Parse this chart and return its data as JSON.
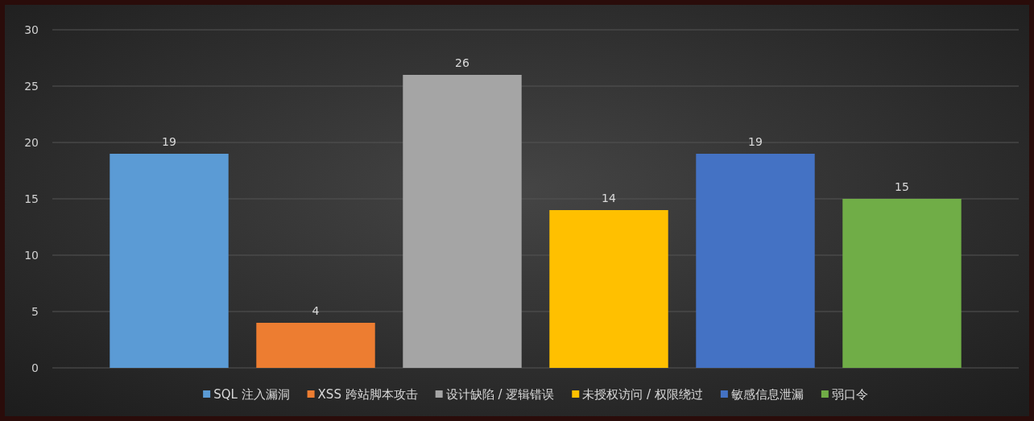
{
  "chart_data": {
    "type": "bar",
    "categories": [
      null
    ],
    "series": [
      {
        "name": "SQL 注入漏洞",
        "color": "#5b9bd5",
        "values": [
          19
        ]
      },
      {
        "name": "XSS 跨站脚本攻击",
        "color": "#ed7d31",
        "values": [
          4
        ]
      },
      {
        "name": "设计缺陷 / 逻辑错误",
        "color": "#a5a5a5",
        "values": [
          26
        ]
      },
      {
        "name": "未授权访问 / 权限绕过",
        "color": "#ffc000",
        "values": [
          14
        ]
      },
      {
        "name": "敏感信息泄漏",
        "color": "#4472c4",
        "values": [
          19
        ]
      },
      {
        "name": "弱口令",
        "color": "#70ad47",
        "values": [
          15
        ]
      }
    ],
    "ylim": [
      0,
      30
    ],
    "yticks": [
      0,
      5,
      10,
      15,
      20,
      25,
      30
    ],
    "grid": "y",
    "data_labels": true,
    "legend": "bottom"
  }
}
